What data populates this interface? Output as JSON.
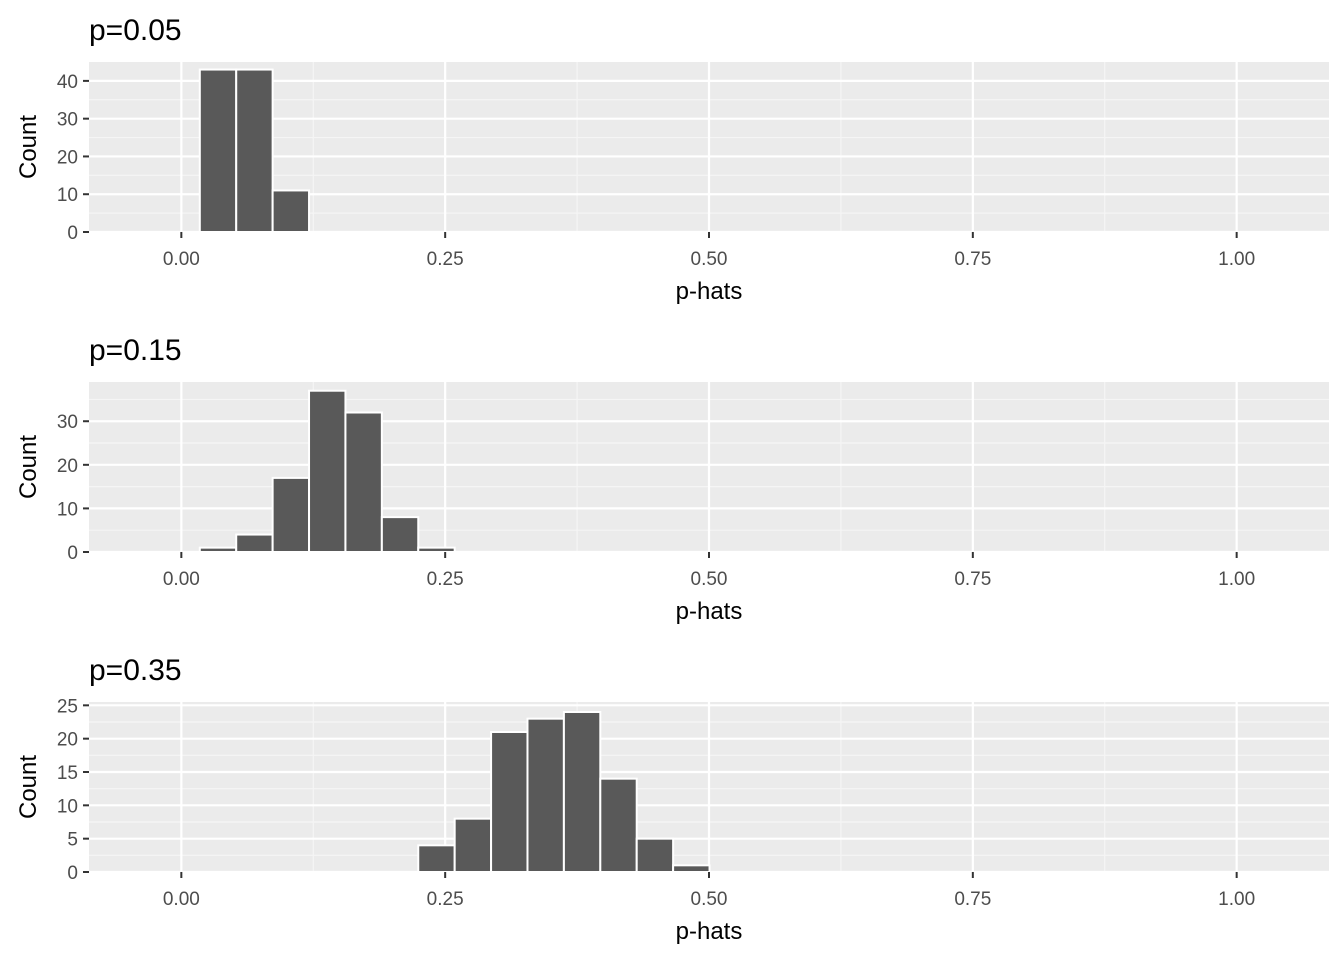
{
  "chart_data": [
    {
      "type": "bar",
      "title": "p=0.05",
      "xlabel": "p-hats",
      "ylabel": "Count",
      "xlim": [
        -0.0875,
        1.0875
      ],
      "ylim": [
        0,
        45
      ],
      "xticks": [
        0.0,
        0.25,
        0.5,
        0.75,
        1.0
      ],
      "xtick_labels": [
        "0.00",
        "0.25",
        "0.50",
        "0.75",
        "1.00"
      ],
      "yticks": [
        0,
        10,
        20,
        30,
        40
      ],
      "ytick_labels": [
        "0",
        "10",
        "20",
        "30",
        "40"
      ],
      "grid": true,
      "bin_width": 0.0345,
      "bins": [
        {
          "x0": 0.0175,
          "x1": 0.052,
          "count": 43
        },
        {
          "x0": 0.052,
          "x1": 0.0865,
          "count": 43
        },
        {
          "x0": 0.0865,
          "x1": 0.121,
          "count": 11
        }
      ]
    },
    {
      "type": "bar",
      "title": "p=0.15",
      "xlabel": "p-hats",
      "ylabel": "Count",
      "xlim": [
        -0.0875,
        1.0875
      ],
      "ylim": [
        0,
        39
      ],
      "xticks": [
        0.0,
        0.25,
        0.5,
        0.75,
        1.0
      ],
      "xtick_labels": [
        "0.00",
        "0.25",
        "0.50",
        "0.75",
        "1.00"
      ],
      "yticks": [
        0,
        10,
        20,
        30
      ],
      "ytick_labels": [
        "0",
        "10",
        "20",
        "30"
      ],
      "grid": true,
      "bin_width": 0.0345,
      "bins": [
        {
          "x0": 0.0175,
          "x1": 0.052,
          "count": 1
        },
        {
          "x0": 0.052,
          "x1": 0.0865,
          "count": 4
        },
        {
          "x0": 0.0865,
          "x1": 0.121,
          "count": 17
        },
        {
          "x0": 0.121,
          "x1": 0.1555,
          "count": 37
        },
        {
          "x0": 0.1555,
          "x1": 0.19,
          "count": 32
        },
        {
          "x0": 0.19,
          "x1": 0.2245,
          "count": 8
        },
        {
          "x0": 0.2245,
          "x1": 0.259,
          "count": 1
        }
      ]
    },
    {
      "type": "bar",
      "title": "p=0.35",
      "xlabel": "p-hats",
      "ylabel": "Count",
      "xlim": [
        -0.0875,
        1.0875
      ],
      "ylim": [
        0,
        25.5
      ],
      "xticks": [
        0.0,
        0.25,
        0.5,
        0.75,
        1.0
      ],
      "xtick_labels": [
        "0.00",
        "0.25",
        "0.50",
        "0.75",
        "1.00"
      ],
      "yticks": [
        0,
        5,
        10,
        15,
        20,
        25
      ],
      "ytick_labels": [
        "0",
        "5",
        "10",
        "15",
        "20",
        "25"
      ],
      "grid": true,
      "bin_width": 0.0345,
      "bins": [
        {
          "x0": 0.2245,
          "x1": 0.259,
          "count": 4
        },
        {
          "x0": 0.259,
          "x1": 0.2935,
          "count": 8
        },
        {
          "x0": 0.2935,
          "x1": 0.328,
          "count": 21
        },
        {
          "x0": 0.328,
          "x1": 0.3625,
          "count": 23
        },
        {
          "x0": 0.3625,
          "x1": 0.397,
          "count": 24
        },
        {
          "x0": 0.397,
          "x1": 0.4315,
          "count": 14
        },
        {
          "x0": 0.4315,
          "x1": 0.466,
          "count": 5
        },
        {
          "x0": 0.466,
          "x1": 0.5005,
          "count": 1
        }
      ]
    }
  ],
  "colors": {
    "panel_background": "#ebebeb",
    "grid_major": "#ffffff",
    "grid_minor": "#f5f5f5",
    "bar_fill": "#595959",
    "bar_outline": "#ffffff",
    "tick_text": "#4d4d4d",
    "title_text": "#000000"
  }
}
